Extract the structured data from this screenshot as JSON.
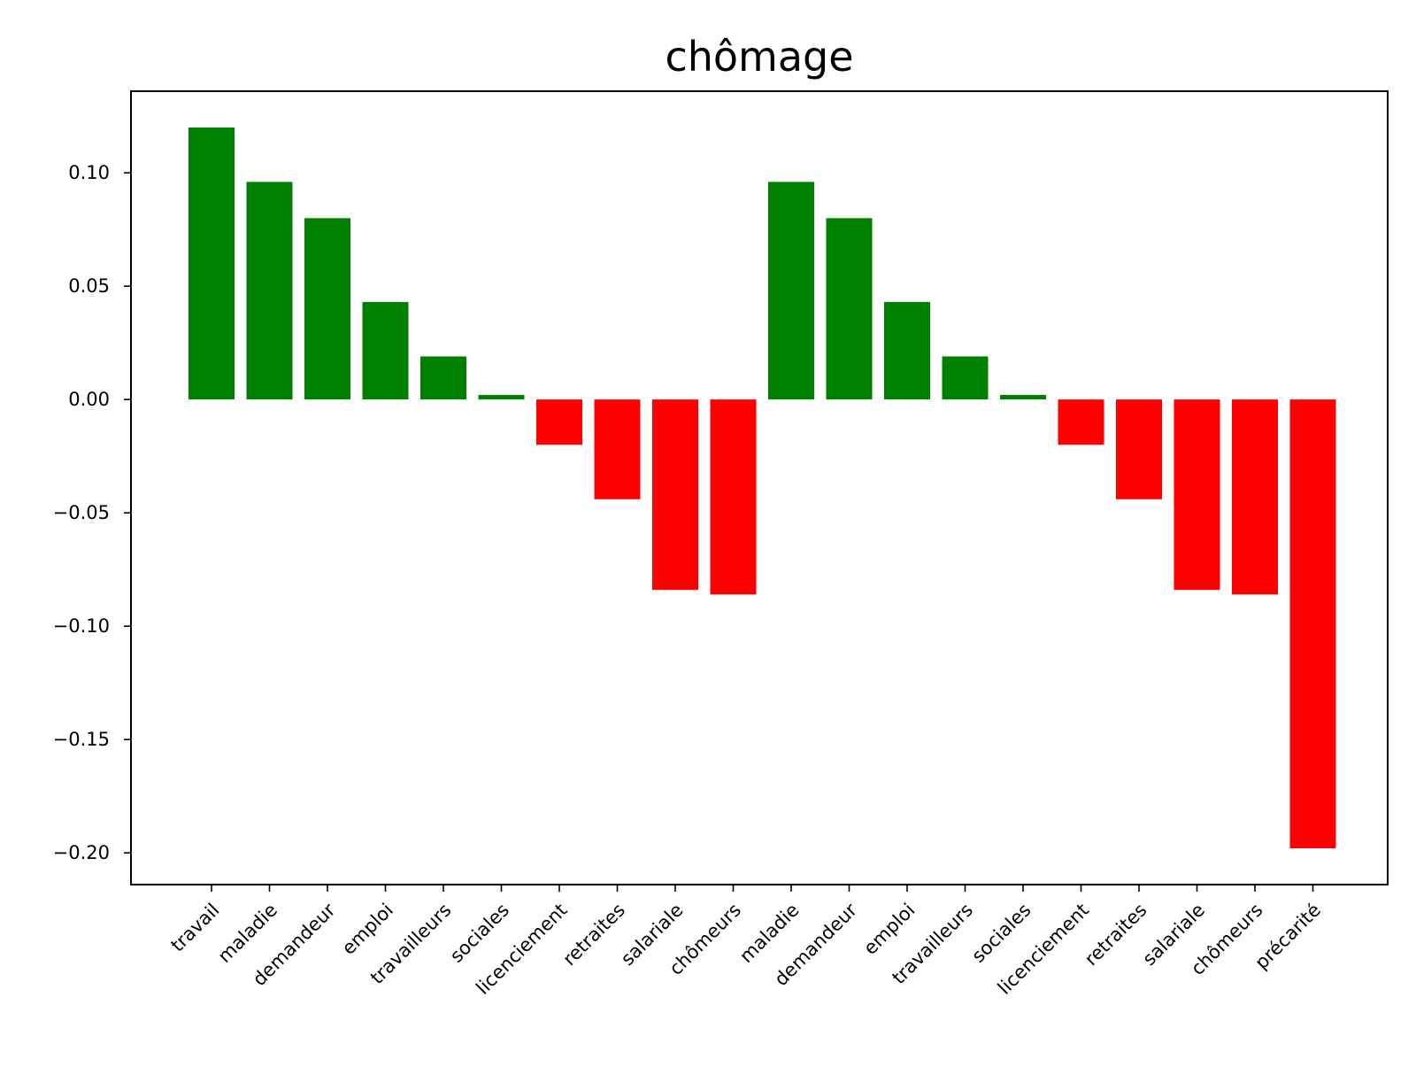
{
  "chart_data": {
    "type": "bar",
    "title": "chômage",
    "xlabel": "",
    "ylabel": "",
    "categories": [
      "travail",
      "maladie",
      "demandeur",
      "emploi",
      "travailleurs",
      "sociales",
      "licenciement",
      "retraites",
      "salariale",
      "chômeurs",
      "maladie",
      "demandeur",
      "emploi",
      "travailleurs",
      "sociales",
      "licenciement",
      "retraites",
      "salariale",
      "chômeurs",
      "précarité"
    ],
    "values": [
      0.12,
      0.096,
      0.08,
      0.043,
      0.019,
      0.002,
      -0.02,
      -0.044,
      -0.084,
      -0.086,
      0.096,
      0.08,
      0.043,
      0.019,
      0.002,
      -0.02,
      -0.044,
      -0.084,
      -0.086,
      -0.198
    ],
    "ylim": [
      -0.214,
      0.136
    ],
    "yticks": [
      0.1,
      0.05,
      0.0,
      -0.05,
      -0.1,
      -0.15,
      -0.2
    ],
    "ytick_labels": [
      "0.10",
      "0.05",
      "0.00",
      "−0.05",
      "−0.10",
      "−0.15",
      "−0.20"
    ],
    "colors": {
      "positive": "#008000",
      "negative": "#ff0000"
    },
    "grid": false,
    "legend": false
  }
}
